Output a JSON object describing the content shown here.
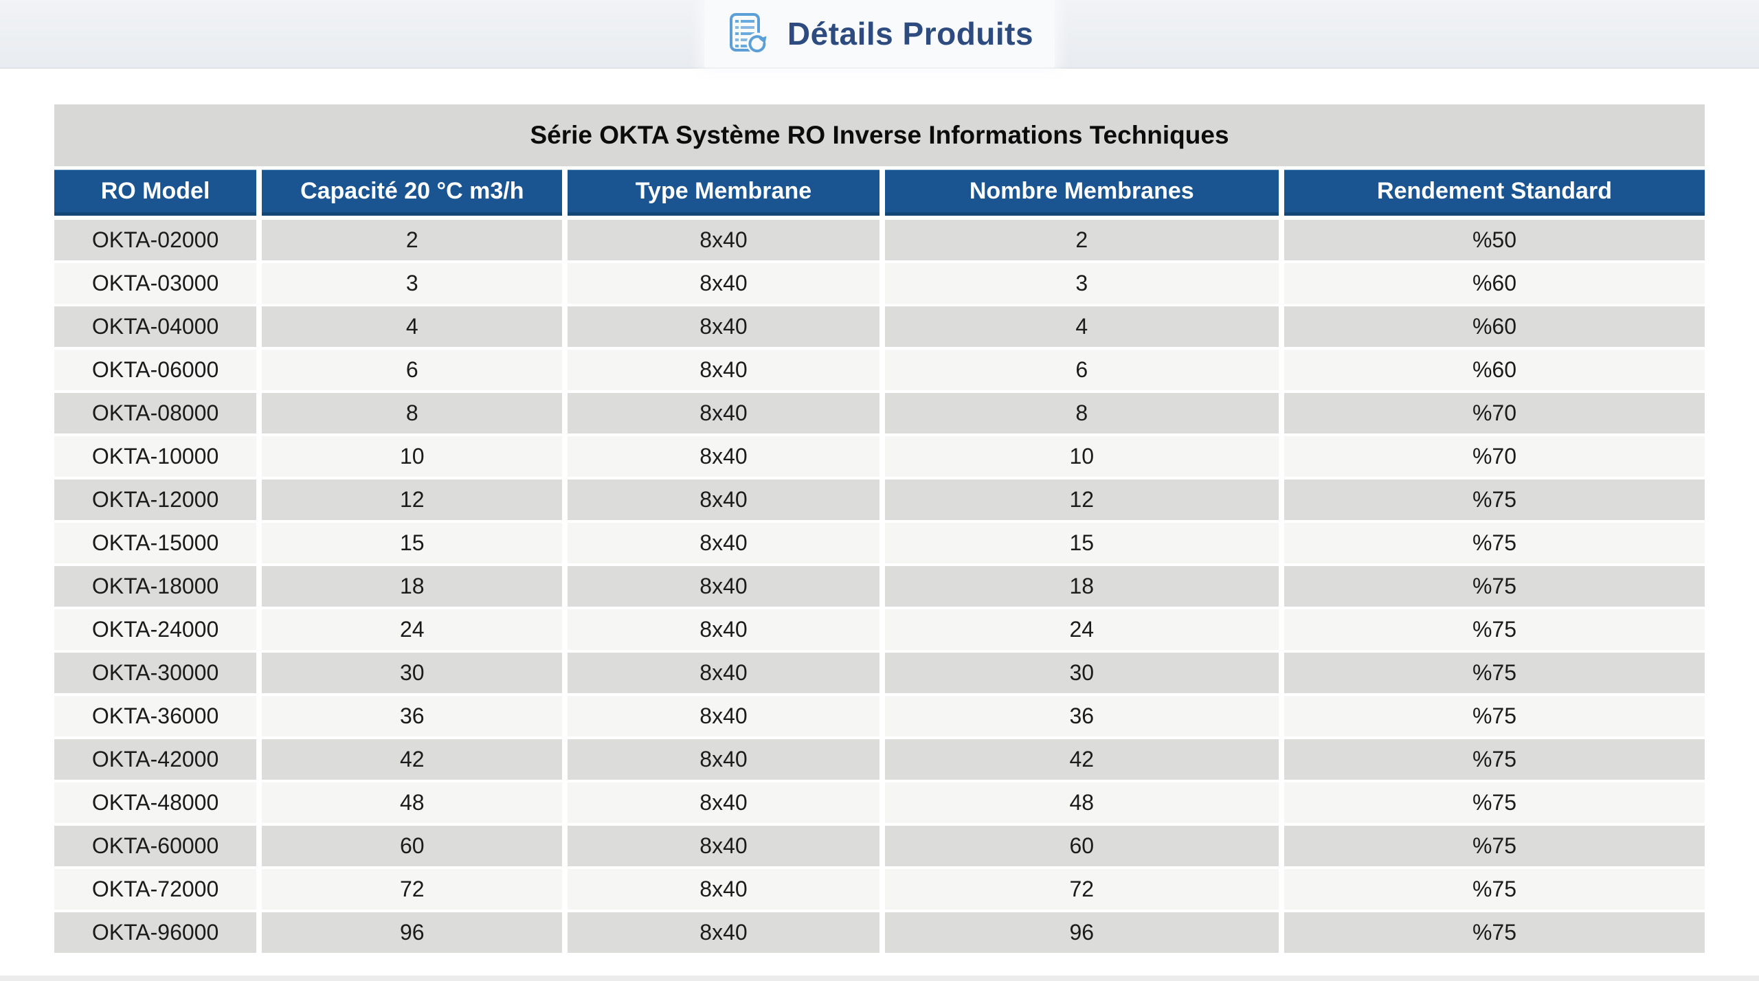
{
  "header": {
    "title": "Détails Produits",
    "icon": "document-list-refresh-icon"
  },
  "table": {
    "title": "Série OKTA Système RO Inverse Informations Techniques",
    "columns": [
      "RO Model",
      "Capacité 20 °C m3/h",
      "Type Membrane",
      "Nombre Membranes",
      "Rendement Standard"
    ],
    "rows": [
      [
        "OKTA-02000",
        "2",
        "8x40",
        "2",
        "%50"
      ],
      [
        "OKTA-03000",
        "3",
        "8x40",
        "3",
        "%60"
      ],
      [
        "OKTA-04000",
        "4",
        "8x40",
        "4",
        "%60"
      ],
      [
        "OKTA-06000",
        "6",
        "8x40",
        "6",
        "%60"
      ],
      [
        "OKTA-08000",
        "8",
        "8x40",
        "8",
        "%70"
      ],
      [
        "OKTA-10000",
        "10",
        "8x40",
        "10",
        "%70"
      ],
      [
        "OKTA-12000",
        "12",
        "8x40",
        "12",
        "%75"
      ],
      [
        "OKTA-15000",
        "15",
        "8x40",
        "15",
        "%75"
      ],
      [
        "OKTA-18000",
        "18",
        "8x40",
        "18",
        "%75"
      ],
      [
        "OKTA-24000",
        "24",
        "8x40",
        "24",
        "%75"
      ],
      [
        "OKTA-30000",
        "30",
        "8x40",
        "30",
        "%75"
      ],
      [
        "OKTA-36000",
        "36",
        "8x40",
        "36",
        "%75"
      ],
      [
        "OKTA-42000",
        "42",
        "8x40",
        "42",
        "%75"
      ],
      [
        "OKTA-48000",
        "48",
        "8x40",
        "48",
        "%75"
      ],
      [
        "OKTA-60000",
        "60",
        "8x40",
        "60",
        "%75"
      ],
      [
        "OKTA-72000",
        "72",
        "8x40",
        "72",
        "%75"
      ],
      [
        "OKTA-96000",
        "96",
        "8x40",
        "96",
        "%75"
      ]
    ]
  },
  "colors": {
    "header_blue": "#1a5592",
    "header_blue_border": "#134874",
    "title_band_gray": "#d8d8d6",
    "row_gray": "#dcdcda",
    "row_light": "#f6f6f4",
    "topbar_bg": "#eef0f3",
    "app_title_navy": "#2d4b7e",
    "icon_blue": "#5b9fd6"
  }
}
